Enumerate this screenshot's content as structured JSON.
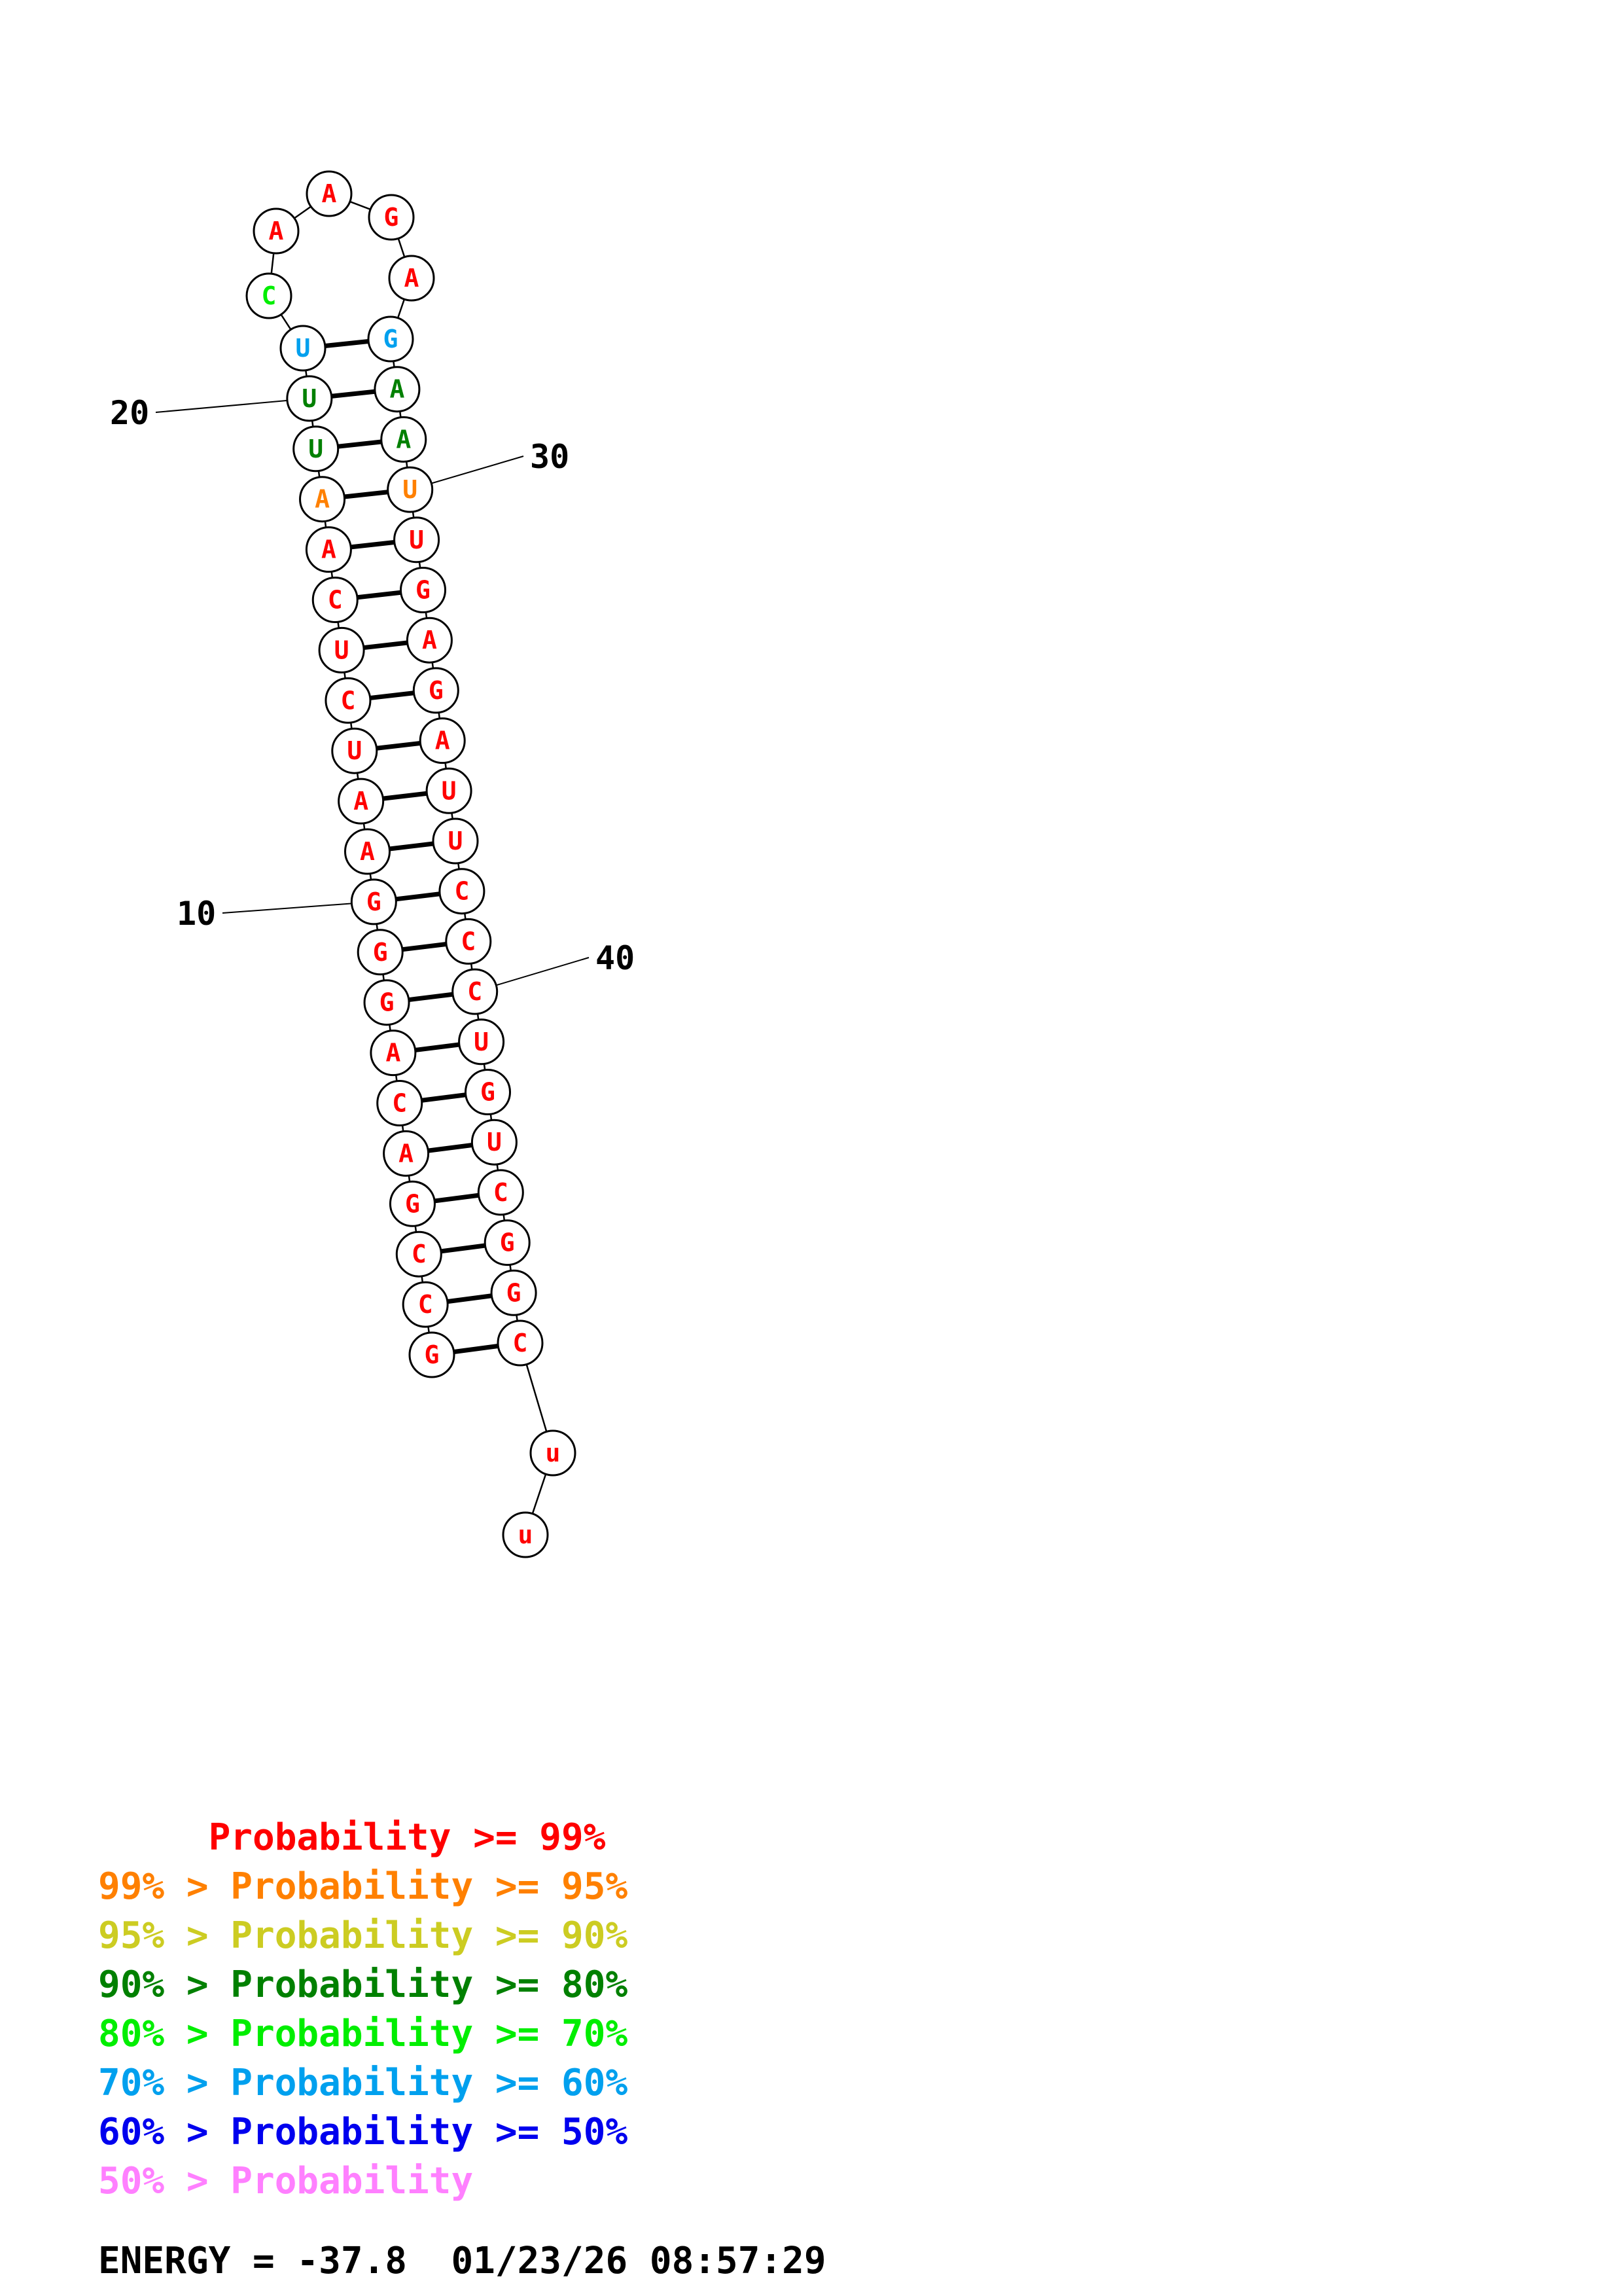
{
  "colors": {
    "p99": "#ff0000",
    "p95": "#ff8000",
    "p90": "#cccc22",
    "p80": "#008000",
    "p70": "#00ee00",
    "p60": "#00a0ee",
    "p50": "#0000ee",
    "low": "#ff80ff"
  },
  "sequence": [
    {
      "n": 1,
      "base": "G",
      "p": "p99"
    },
    {
      "n": 2,
      "base": "C",
      "p": "p99"
    },
    {
      "n": 3,
      "base": "C",
      "p": "p99"
    },
    {
      "n": 4,
      "base": "G",
      "p": "p99"
    },
    {
      "n": 5,
      "base": "A",
      "p": "p99"
    },
    {
      "n": 6,
      "base": "C",
      "p": "p99"
    },
    {
      "n": 7,
      "base": "A",
      "p": "p99"
    },
    {
      "n": 8,
      "base": "G",
      "p": "p99"
    },
    {
      "n": 9,
      "base": "G",
      "p": "p99"
    },
    {
      "n": 10,
      "base": "G",
      "p": "p99"
    },
    {
      "n": 11,
      "base": "A",
      "p": "p99"
    },
    {
      "n": 12,
      "base": "A",
      "p": "p99"
    },
    {
      "n": 13,
      "base": "U",
      "p": "p99"
    },
    {
      "n": 14,
      "base": "C",
      "p": "p99"
    },
    {
      "n": 15,
      "base": "U",
      "p": "p99"
    },
    {
      "n": 16,
      "base": "C",
      "p": "p99"
    },
    {
      "n": 17,
      "base": "A",
      "p": "p99"
    },
    {
      "n": 18,
      "base": "A",
      "p": "p95"
    },
    {
      "n": 19,
      "base": "U",
      "p": "p80"
    },
    {
      "n": 20,
      "base": "U",
      "p": "p80"
    },
    {
      "n": 21,
      "base": "U",
      "p": "p60"
    },
    {
      "n": 22,
      "base": "C",
      "p": "p70"
    },
    {
      "n": 23,
      "base": "A",
      "p": "p99"
    },
    {
      "n": 24,
      "base": "A",
      "p": "p99"
    },
    {
      "n": 25,
      "base": "G",
      "p": "p99"
    },
    {
      "n": 26,
      "base": "A",
      "p": "p99"
    },
    {
      "n": 27,
      "base": "G",
      "p": "p60"
    },
    {
      "n": 28,
      "base": "A",
      "p": "p80"
    },
    {
      "n": 29,
      "base": "A",
      "p": "p80"
    },
    {
      "n": 30,
      "base": "U",
      "p": "p95"
    },
    {
      "n": 31,
      "base": "U",
      "p": "p99"
    },
    {
      "n": 32,
      "base": "G",
      "p": "p99"
    },
    {
      "n": 33,
      "base": "A",
      "p": "p99"
    },
    {
      "n": 34,
      "base": "G",
      "p": "p99"
    },
    {
      "n": 35,
      "base": "A",
      "p": "p99"
    },
    {
      "n": 36,
      "base": "U",
      "p": "p99"
    },
    {
      "n": 37,
      "base": "U",
      "p": "p99"
    },
    {
      "n": 38,
      "base": "C",
      "p": "p99"
    },
    {
      "n": 39,
      "base": "C",
      "p": "p99"
    },
    {
      "n": 40,
      "base": "C",
      "p": "p99"
    },
    {
      "n": 41,
      "base": "U",
      "p": "p99"
    },
    {
      "n": 42,
      "base": "G",
      "p": "p99"
    },
    {
      "n": 43,
      "base": "U",
      "p": "p99"
    },
    {
      "n": 44,
      "base": "C",
      "p": "p99"
    },
    {
      "n": 45,
      "base": "G",
      "p": "p99"
    },
    {
      "n": 46,
      "base": "G",
      "p": "p99"
    },
    {
      "n": 47,
      "base": "C",
      "p": "p99"
    },
    {
      "n": 48,
      "base": "u",
      "p": "p99"
    },
    {
      "n": 49,
      "base": "u",
      "p": "p99"
    }
  ],
  "pairs": [
    [
      1,
      47
    ],
    [
      2,
      46
    ],
    [
      3,
      45
    ],
    [
      4,
      44
    ],
    [
      5,
      43
    ],
    [
      6,
      42
    ],
    [
      7,
      41
    ],
    [
      8,
      40
    ],
    [
      9,
      39
    ],
    [
      10,
      38
    ],
    [
      11,
      37
    ],
    [
      12,
      36
    ],
    [
      13,
      35
    ],
    [
      14,
      34
    ],
    [
      15,
      33
    ],
    [
      16,
      32
    ],
    [
      17,
      31
    ],
    [
      18,
      30
    ],
    [
      19,
      29
    ],
    [
      20,
      28
    ],
    [
      21,
      27
    ]
  ],
  "position_labels": [
    {
      "text": "10",
      "n": 10
    },
    {
      "text": "20",
      "n": 20
    },
    {
      "text": "30",
      "n": 30
    },
    {
      "text": "40",
      "n": 40
    }
  ],
  "legend": [
    {
      "text": "     Probability >= 99%",
      "color": "p99"
    },
    {
      "text": "99% > Probability >= 95%",
      "color": "p95"
    },
    {
      "text": "95% > Probability >= 90%",
      "color": "p90"
    },
    {
      "text": "90% > Probability >= 80%",
      "color": "p80"
    },
    {
      "text": "80% > Probability >= 70%",
      "color": "p70"
    },
    {
      "text": "70% > Probability >= 60%",
      "color": "p60"
    },
    {
      "text": "60% > Probability >= 50%",
      "color": "p50"
    },
    {
      "text": "50% > Probability",
      "color": "low"
    }
  ],
  "energy_line": "ENERGY = -37.8  01/23/26 08:57:29"
}
